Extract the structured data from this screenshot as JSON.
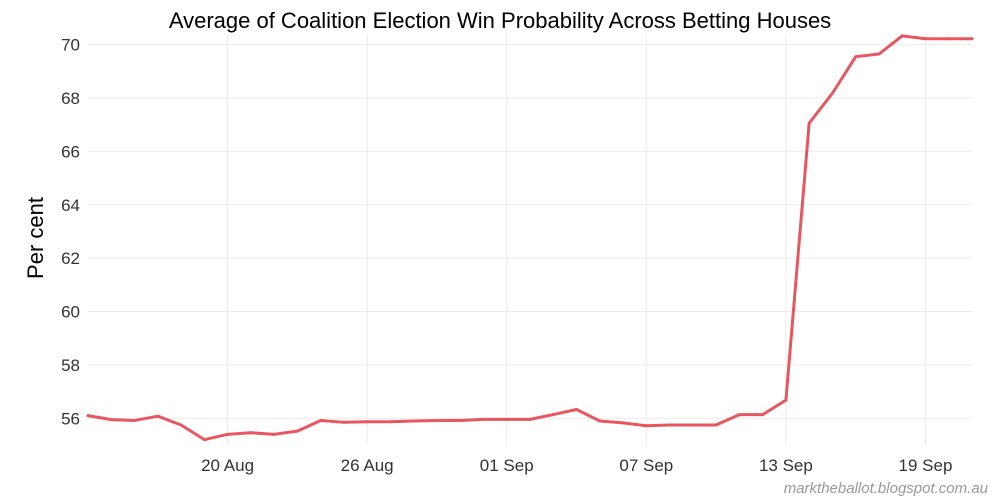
{
  "chart_data": {
    "type": "line",
    "title": "Average of Coalition Election Win Probability Across Betting Houses",
    "xlabel": "",
    "ylabel": "Per cent",
    "ylim": [
      55,
      70.4
    ],
    "yticks": [
      56,
      58,
      60,
      62,
      64,
      66,
      68,
      70
    ],
    "xlim": [
      "2016-08-14",
      "2016-09-21"
    ],
    "xticks": [
      {
        "date": "2016-08-20",
        "label": "20 Aug"
      },
      {
        "date": "2016-08-26",
        "label": "26 Aug"
      },
      {
        "date": "2016-09-01",
        "label": "01 Sep"
      },
      {
        "date": "2016-09-07",
        "label": "07 Sep"
      },
      {
        "date": "2016-09-13",
        "label": "13 Sep"
      },
      {
        "date": "2016-09-19",
        "label": "19 Sep"
      }
    ],
    "grid": true,
    "line_color": "#e8575f",
    "series": [
      {
        "x": [
          "2016-08-14",
          "2016-08-15",
          "2016-08-16",
          "2016-08-17",
          "2016-08-18",
          "2016-08-19",
          "2016-08-20",
          "2016-08-21",
          "2016-08-22",
          "2016-08-23",
          "2016-08-24",
          "2016-08-25",
          "2016-08-26",
          "2016-08-27",
          "2016-08-28",
          "2016-08-29",
          "2016-08-30",
          "2016-08-31",
          "2016-09-01",
          "2016-09-02",
          "2016-09-03",
          "2016-09-04",
          "2016-09-05",
          "2016-09-06",
          "2016-09-07",
          "2016-09-08",
          "2016-09-09",
          "2016-09-10",
          "2016-09-11",
          "2016-09-12",
          "2016-09-13",
          "2016-09-14",
          "2016-09-15",
          "2016-09-16",
          "2016-09-17",
          "2016-09-18",
          "2016-09-19",
          "2016-09-20",
          "2016-09-21"
        ],
        "values": [
          56.1,
          55.95,
          55.92,
          56.08,
          55.75,
          55.2,
          55.4,
          55.46,
          55.4,
          55.52,
          55.92,
          55.85,
          55.87,
          55.87,
          55.9,
          55.92,
          55.92,
          55.96,
          55.96,
          55.96,
          56.14,
          56.33,
          55.9,
          55.83,
          55.72,
          55.75,
          55.75,
          55.75,
          56.14,
          56.14,
          56.68,
          67.06,
          68.18,
          69.55,
          69.65,
          70.33,
          70.22,
          70.22,
          70.22
        ]
      }
    ]
  },
  "footer": {
    "credit": "marktheballot.blogspot.com.au"
  }
}
